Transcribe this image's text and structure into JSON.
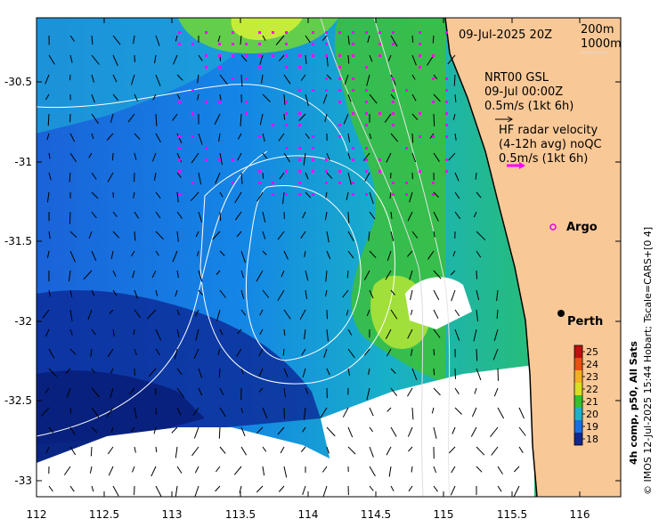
{
  "title": "09-Jul-2025 20Z",
  "depth_legend": {
    "contour_1": "200m",
    "contour_2": "1000m"
  },
  "model_current": {
    "source": "NRT00 GSL",
    "time": "09-Jul 00:00Z",
    "scale": "0.5m/s (1kt 6h)"
  },
  "radar_current": {
    "title": "HF radar velocity",
    "subtitle": "(4-12h avg) noQC",
    "scale": "0.5m/s (1kt 6h)"
  },
  "markers": {
    "argo": "Argo",
    "perth": "Perth"
  },
  "colorbar": {
    "ticks": [
      "25",
      "24",
      "23",
      "22",
      "21",
      "20",
      "19",
      "18"
    ],
    "label": "4h comp, p50, All Sats"
  },
  "credit": "© IMOS 12-Jul-2025 15:44 Hobart; Tscale=CARS+[0 4]",
  "axes": {
    "x_ticks": [
      "112",
      "112.5",
      "113",
      "113.5",
      "114",
      "114.5",
      "115",
      "115.5",
      "116"
    ],
    "y_ticks": [
      "-30.5",
      "-31",
      "-31.5",
      "-32",
      "-32.5",
      "-33"
    ]
  },
  "colors": {
    "land": "#f9c897",
    "argo": "#e000e0",
    "radar_arrow": "#ff00ff"
  }
}
